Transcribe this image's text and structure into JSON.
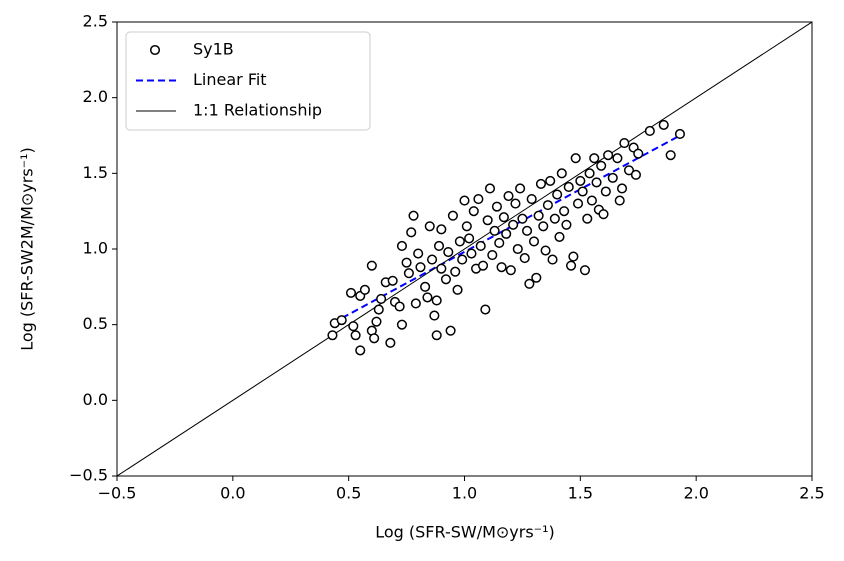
{
  "chart_data": {
    "type": "scatter",
    "xlabel": "Log (SFR-SW/M⊙yrs⁻¹)",
    "ylabel": "Log (SFR-SW2M/M⊙yrs⁻¹)",
    "xlim": [
      -0.5,
      2.5
    ],
    "ylim": [
      -0.5,
      2.5
    ],
    "xticks": [
      {
        "value": -0.5,
        "label": "−0.5"
      },
      {
        "value": 0,
        "label": "0.0"
      },
      0.5,
      {
        "value": 1,
        "label": "1.0"
      },
      1.5,
      {
        "value": 2,
        "label": "2.0"
      },
      2.5
    ],
    "yticks": [
      {
        "value": -0.5,
        "label": "−0.5"
      },
      {
        "value": 0,
        "label": "0.0"
      },
      0.5,
      {
        "value": 1,
        "label": "1.0"
      },
      1.5,
      {
        "value": 2,
        "label": "2.0"
      },
      2.5
    ],
    "grid": false,
    "legend": "upper left",
    "series": [
      {
        "name": "Sy1B",
        "type": "scatter",
        "color": "#000000",
        "x": [
          0.43,
          0.44,
          0.47,
          0.51,
          0.52,
          0.53,
          0.55,
          0.55,
          0.57,
          0.6,
          0.6,
          0.61,
          0.62,
          0.63,
          0.64,
          0.66,
          0.68,
          0.69,
          0.7,
          0.72,
          0.73,
          0.73,
          0.75,
          0.76,
          0.77,
          0.78,
          0.79,
          0.8,
          0.81,
          0.83,
          0.84,
          0.85,
          0.86,
          0.87,
          0.88,
          0.88,
          0.89,
          0.9,
          0.9,
          0.92,
          0.93,
          0.94,
          0.95,
          0.96,
          0.97,
          0.98,
          0.99,
          1.0,
          1.01,
          1.02,
          1.03,
          1.04,
          1.05,
          1.06,
          1.07,
          1.08,
          1.09,
          1.1,
          1.11,
          1.12,
          1.13,
          1.14,
          1.15,
          1.16,
          1.17,
          1.18,
          1.19,
          1.2,
          1.21,
          1.22,
          1.23,
          1.24,
          1.25,
          1.26,
          1.27,
          1.28,
          1.29,
          1.3,
          1.31,
          1.32,
          1.33,
          1.34,
          1.35,
          1.36,
          1.37,
          1.38,
          1.39,
          1.4,
          1.41,
          1.42,
          1.43,
          1.44,
          1.45,
          1.46,
          1.47,
          1.48,
          1.49,
          1.5,
          1.51,
          1.52,
          1.53,
          1.54,
          1.55,
          1.56,
          1.57,
          1.58,
          1.59,
          1.6,
          1.61,
          1.62,
          1.64,
          1.66,
          1.67,
          1.68,
          1.69,
          1.71,
          1.73,
          1.74,
          1.75,
          1.8,
          1.86,
          1.89,
          1.93
        ],
        "values": [
          0.43,
          0.51,
          0.53,
          0.71,
          0.49,
          0.43,
          0.33,
          0.69,
          0.73,
          0.89,
          0.46,
          0.41,
          0.52,
          0.6,
          0.67,
          0.78,
          0.38,
          0.79,
          0.65,
          0.62,
          0.5,
          1.02,
          0.91,
          0.84,
          1.11,
          1.22,
          0.64,
          0.97,
          0.88,
          0.75,
          0.68,
          1.15,
          0.93,
          0.56,
          0.43,
          0.66,
          1.02,
          0.87,
          1.13,
          0.8,
          0.98,
          0.46,
          1.22,
          0.85,
          0.73,
          1.05,
          0.93,
          1.32,
          1.15,
          1.07,
          0.97,
          1.25,
          0.87,
          1.33,
          1.02,
          0.89,
          0.6,
          1.19,
          1.4,
          0.96,
          1.12,
          1.28,
          1.04,
          0.88,
          1.21,
          1.1,
          1.35,
          0.86,
          1.16,
          1.3,
          1.0,
          1.4,
          1.2,
          0.94,
          1.12,
          0.77,
          1.33,
          1.05,
          0.81,
          1.22,
          1.43,
          1.15,
          0.99,
          1.29,
          1.45,
          0.93,
          1.2,
          1.36,
          1.08,
          1.5,
          1.25,
          1.16,
          1.41,
          0.89,
          0.95,
          1.6,
          1.3,
          1.45,
          1.38,
          0.86,
          1.2,
          1.5,
          1.32,
          1.6,
          1.44,
          1.26,
          1.55,
          1.23,
          1.38,
          1.62,
          1.47,
          1.6,
          1.32,
          1.4,
          1.7,
          1.52,
          1.67,
          1.49,
          1.63,
          1.78,
          1.82,
          1.62,
          1.76
        ]
      },
      {
        "name": "Linear Fit",
        "type": "line",
        "color": "#0000ff",
        "linestyle": "dashed",
        "x": [
          0.43,
          1.93
        ],
        "values": [
          0.51,
          1.75
        ]
      },
      {
        "name": "1:1 Relationship",
        "type": "line",
        "color": "#000000",
        "linestyle": "solid",
        "x": [
          -0.5,
          2.5
        ],
        "values": [
          -0.5,
          2.5
        ]
      }
    ]
  }
}
